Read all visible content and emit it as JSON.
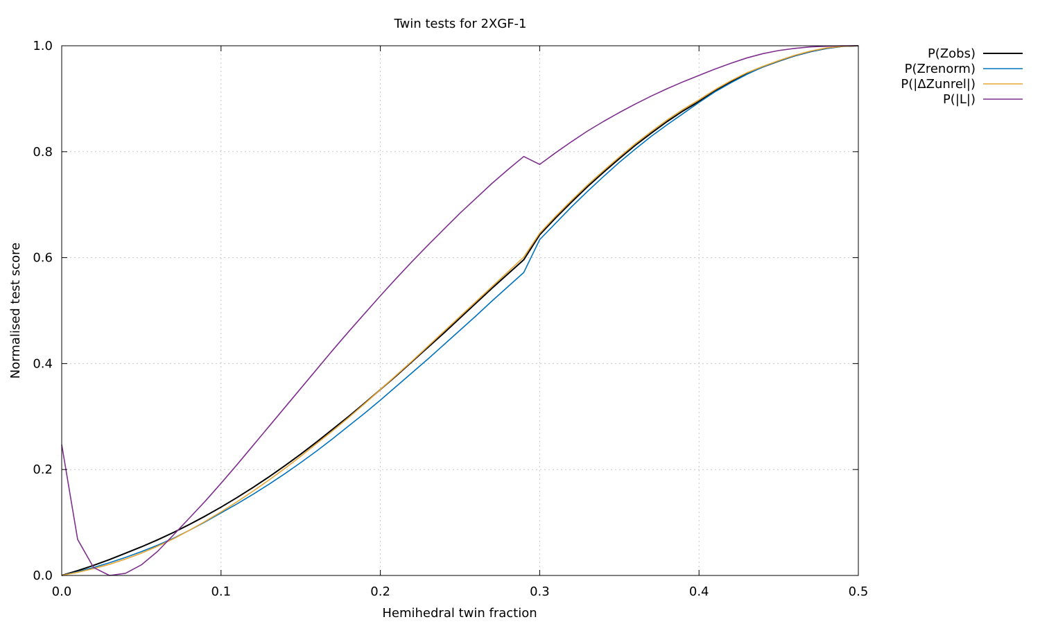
{
  "chart_data": {
    "type": "line",
    "title": "Twin tests for 2XGF-1",
    "xlabel": "Hemihedral twin fraction",
    "ylabel": "Normalised test score",
    "xlim": [
      0.0,
      0.5
    ],
    "ylim": [
      0.0,
      1.0
    ],
    "xticks": [
      0.0,
      0.1,
      0.2,
      0.3,
      0.4,
      0.5
    ],
    "xtick_labels": [
      "0.0",
      "0.1",
      "0.2",
      "0.3",
      "0.4",
      "0.5"
    ],
    "yticks": [
      0.0,
      0.2,
      0.4,
      0.6,
      0.8,
      1.0
    ],
    "ytick_labels": [
      "0.0",
      "0.2",
      "0.4",
      "0.6",
      "0.8",
      "1.0"
    ],
    "grid": true,
    "legend_position": "outside-top-right",
    "x": [
      0.0,
      0.01,
      0.02,
      0.03,
      0.04,
      0.05,
      0.06,
      0.07,
      0.08,
      0.09,
      0.1,
      0.11,
      0.12,
      0.13,
      0.14,
      0.15,
      0.16,
      0.17,
      0.18,
      0.19,
      0.2,
      0.21,
      0.22,
      0.23,
      0.24,
      0.25,
      0.26,
      0.27,
      0.28,
      0.29,
      0.3,
      0.31,
      0.32,
      0.33,
      0.34,
      0.35,
      0.36,
      0.37,
      0.38,
      0.39,
      0.4,
      0.41,
      0.42,
      0.43,
      0.44,
      0.45,
      0.46,
      0.47,
      0.48,
      0.49,
      0.5
    ],
    "series": [
      {
        "name": "P(Zobs)",
        "color": "#000000",
        "values": [
          0.0,
          0.009,
          0.019,
          0.03,
          0.042,
          0.054,
          0.067,
          0.081,
          0.096,
          0.112,
          0.129,
          0.147,
          0.166,
          0.186,
          0.207,
          0.229,
          0.252,
          0.276,
          0.3,
          0.325,
          0.351,
          0.377,
          0.404,
          0.431,
          0.458,
          0.486,
          0.514,
          0.542,
          0.569,
          0.596,
          0.643,
          0.675,
          0.705,
          0.734,
          0.761,
          0.787,
          0.812,
          0.835,
          0.857,
          0.877,
          0.895,
          0.915,
          0.932,
          0.947,
          0.96,
          0.971,
          0.981,
          0.989,
          0.995,
          0.999,
          1.0
        ]
      },
      {
        "name": "P(Zrenorm)",
        "color": "#0072bd",
        "values": [
          0.0,
          0.007,
          0.015,
          0.024,
          0.034,
          0.045,
          0.057,
          0.07,
          0.085,
          0.101,
          0.118,
          0.135,
          0.153,
          0.172,
          0.192,
          0.213,
          0.235,
          0.258,
          0.282,
          0.306,
          0.331,
          0.357,
          0.383,
          0.409,
          0.436,
          0.463,
          0.49,
          0.518,
          0.545,
          0.572,
          0.634,
          0.665,
          0.696,
          0.725,
          0.753,
          0.78,
          0.805,
          0.829,
          0.851,
          0.872,
          0.893,
          0.913,
          0.93,
          0.946,
          0.96,
          0.971,
          0.981,
          0.989,
          0.995,
          0.999,
          1.0
        ]
      },
      {
        "name": "P(|ΔZunrel|)",
        "color": "#e6a532",
        "values": [
          0.0,
          0.006,
          0.013,
          0.021,
          0.031,
          0.042,
          0.055,
          0.069,
          0.085,
          0.102,
          0.12,
          0.139,
          0.159,
          0.18,
          0.202,
          0.225,
          0.249,
          0.273,
          0.298,
          0.324,
          0.351,
          0.378,
          0.405,
          0.433,
          0.461,
          0.489,
          0.517,
          0.545,
          0.573,
          0.601,
          0.646,
          0.678,
          0.708,
          0.737,
          0.764,
          0.79,
          0.815,
          0.838,
          0.86,
          0.88,
          0.898,
          0.917,
          0.934,
          0.949,
          0.961,
          0.972,
          0.982,
          0.99,
          0.996,
          0.999,
          1.0
        ]
      },
      {
        "name": "P(|L|)",
        "color": "#7e2f8e",
        "values": [
          0.247,
          0.068,
          0.015,
          0.0,
          0.004,
          0.02,
          0.045,
          0.076,
          0.108,
          0.14,
          0.174,
          0.209,
          0.245,
          0.281,
          0.317,
          0.353,
          0.389,
          0.425,
          0.46,
          0.494,
          0.528,
          0.561,
          0.593,
          0.624,
          0.654,
          0.684,
          0.712,
          0.74,
          0.766,
          0.791,
          0.776,
          0.798,
          0.819,
          0.839,
          0.857,
          0.874,
          0.89,
          0.905,
          0.919,
          0.932,
          0.944,
          0.956,
          0.967,
          0.977,
          0.985,
          0.991,
          0.995,
          0.998,
          0.999,
          1.0,
          1.0
        ]
      }
    ]
  }
}
